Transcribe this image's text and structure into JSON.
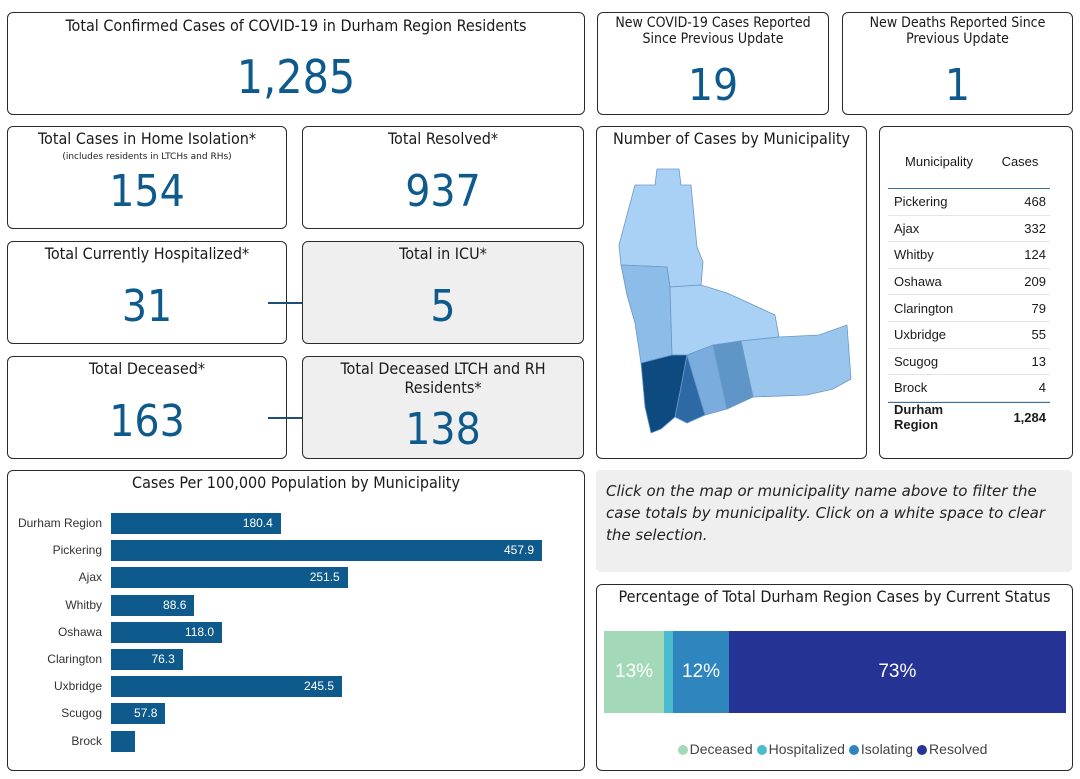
{
  "total_confirmed": {
    "title": "Total Confirmed Cases of COVID-19 in Durham Region Residents",
    "value": "1,285"
  },
  "new_cases": {
    "title_line1": "New COVID-19 Cases Reported",
    "title_line2": "Since Previous Update",
    "value": "19"
  },
  "new_deaths": {
    "title_line1": "New Deaths Reported Since",
    "title_line2": "Previous Update",
    "value": "1"
  },
  "home_isolation": {
    "title": "Total Cases in Home Isolation*",
    "subtitle": "(includes residents in LTCHs and RHs)",
    "value": "154"
  },
  "resolved": {
    "title": "Total Resolved*",
    "value": "937"
  },
  "hospitalized": {
    "title": "Total Currently Hospitalized*",
    "value": "31"
  },
  "icu": {
    "title": "Total in ICU*",
    "value": "5"
  },
  "deceased": {
    "title": "Total Deceased*",
    "value": "163"
  },
  "deceased_ltch": {
    "title_line1": "Total Deceased LTCH and RH",
    "title_line2": "Residents*",
    "value": "138"
  },
  "map": {
    "title": "Number of Cases by Municipality"
  },
  "table": {
    "headers": [
      "Municipality",
      "Cases"
    ],
    "rows": [
      {
        "name": "Pickering",
        "cases": "468"
      },
      {
        "name": "Ajax",
        "cases": "332"
      },
      {
        "name": "Whitby",
        "cases": "124"
      },
      {
        "name": "Oshawa",
        "cases": "209"
      },
      {
        "name": "Clarington",
        "cases": "79"
      },
      {
        "name": "Uxbridge",
        "cases": "55"
      },
      {
        "name": "Scugog",
        "cases": "13"
      },
      {
        "name": "Brock",
        "cases": "4"
      }
    ],
    "total": {
      "name": "Durham Region",
      "cases": "1,284"
    }
  },
  "note": "Click on the map or municipality name above to filter the case totals by municipality. Click on a white space to clear the selection.",
  "colors": {
    "accent": "#0f5a8c",
    "deceased": "#a3d9b9",
    "hospitalized": "#4bbcd0",
    "isolating": "#2f85bd",
    "resolved": "#253494"
  },
  "chart_data": [
    {
      "type": "bar",
      "orientation": "horizontal",
      "title": "Cases Per 100,000 Population by Municipality",
      "categories": [
        "Durham Region",
        "Pickering",
        "Ajax",
        "Whitby",
        "Oshawa",
        "Clarington",
        "Uxbridge",
        "Scugog",
        "Brock"
      ],
      "values": [
        180.4,
        457.9,
        251.5,
        88.6,
        118.0,
        76.3,
        245.5,
        57.8,
        26.0
      ],
      "labels": [
        "180.4",
        "457.9",
        "251.5",
        "88.6",
        "118.0",
        "76.3",
        "245.5",
        "57.8",
        ""
      ],
      "xlim": [
        0,
        500
      ]
    },
    {
      "type": "bar",
      "orientation": "horizontal",
      "stacked": true,
      "title": "Percentage of Total Durham Region Cases by Current Status",
      "series": [
        {
          "name": "Deceased",
          "value": 13,
          "label": "13%"
        },
        {
          "name": "Hospitalized",
          "value": 2,
          "label": ""
        },
        {
          "name": "Isolating",
          "value": 12,
          "label": "12%"
        },
        {
          "name": "Resolved",
          "value": 73,
          "label": "73%"
        }
      ],
      "legend": "bottom"
    }
  ]
}
